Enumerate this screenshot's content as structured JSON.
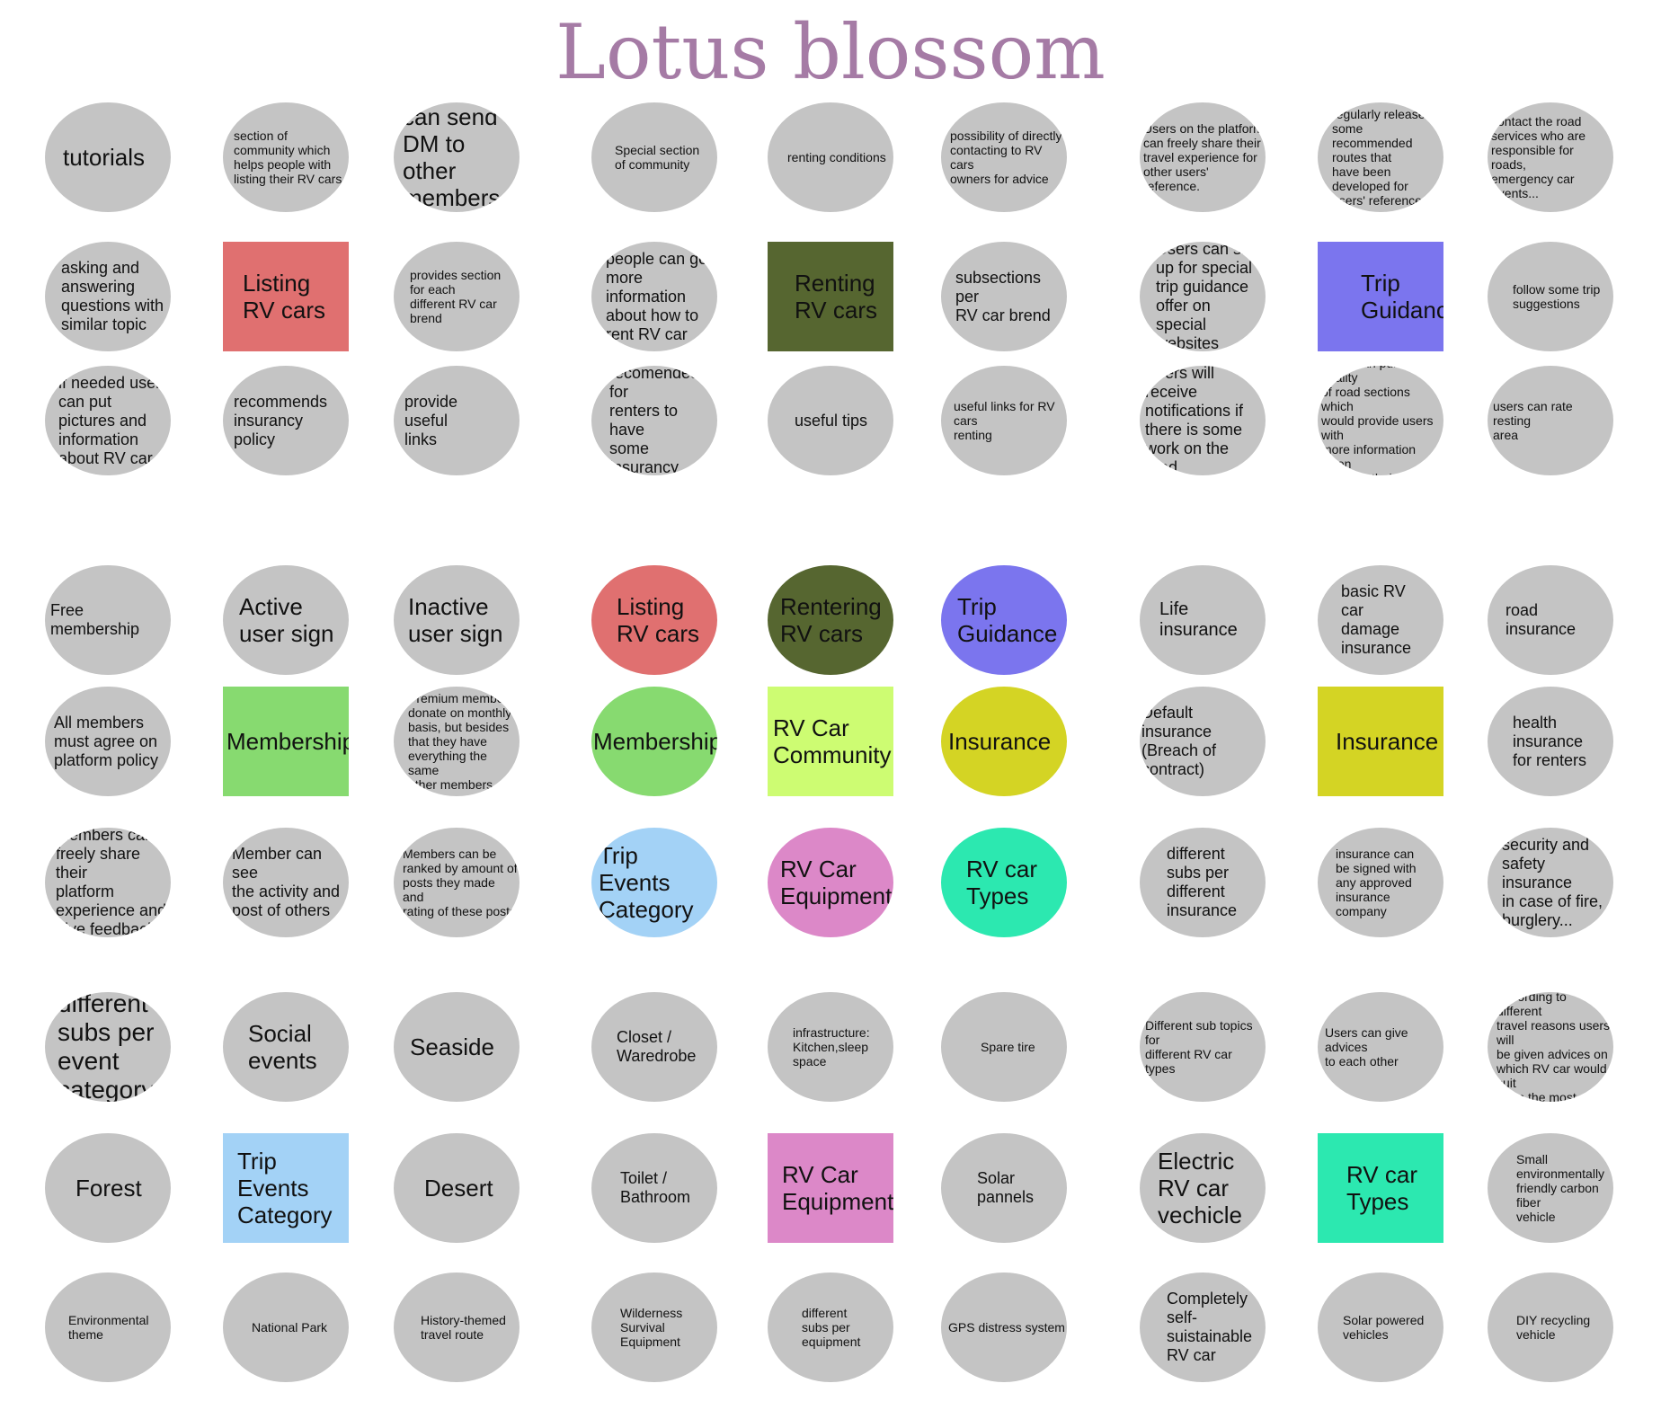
{
  "title": "Lotus blossom",
  "colors": {
    "grey": "#c4c4c4",
    "title": "#a57ba5",
    "listing": "#e07070",
    "renting": "#566630",
    "trip_guidance": "#7b75ee",
    "membership": "#87da70",
    "community": "#cdfc72",
    "insurance": "#d4d424",
    "trip_events": "#a3d2f6",
    "equipment": "#dc88c8",
    "types": "#2ce8b0"
  },
  "nodes": [
    {
      "text": "tutorials",
      "shape": "circle",
      "color": "grey"
    },
    {
      "text": "section of\ncommunity which\nhelps people with\nlisting their RV cars",
      "shape": "circle",
      "color": "grey"
    },
    {
      "text": "can send\nDM to other\nmembers",
      "shape": "circle",
      "color": "grey"
    },
    {
      "text": "asking and\nanswering\nquestions with\nsimilar topic",
      "shape": "circle",
      "color": "grey"
    },
    {
      "text": "Listing\nRV cars",
      "shape": "rect",
      "color": "listing"
    },
    {
      "text": "provides section\nfor each\ndifferent RV car\nbrend",
      "shape": "circle",
      "color": "grey"
    },
    {
      "text": "if needed user\ncan put\npictures and\ninformation\nabout RV car",
      "shape": "circle",
      "color": "grey"
    },
    {
      "text": "recommends\ninsurancy policy",
      "shape": "circle",
      "color": "grey"
    },
    {
      "text": "provide\nuseful\nlinks",
      "shape": "circle",
      "color": "grey"
    },
    {
      "text": "Special section\nof community",
      "shape": "circle",
      "color": "grey"
    },
    {
      "text": "renting conditions",
      "shape": "circle",
      "color": "grey"
    },
    {
      "text": "possibility of directly\ncontacting to RV cars\nowners for advice",
      "shape": "circle",
      "color": "grey"
    },
    {
      "text": "people can get\nmore\ninformation\nabout how to\nrent RV car",
      "shape": "circle",
      "color": "grey"
    },
    {
      "text": "Renting\nRV cars",
      "shape": "rect",
      "color": "renting"
    },
    {
      "text": "subsections per\nRV car brend",
      "shape": "circle",
      "color": "grey"
    },
    {
      "text": "it is usually\nrecomended for\nrenters to have\nsome insurancy\non forum",
      "shape": "circle",
      "color": "grey"
    },
    {
      "text": "useful tips",
      "shape": "circle",
      "color": "grey"
    },
    {
      "text": "useful links for RV cars\nrenting",
      "shape": "circle",
      "color": "grey"
    },
    {
      "text": "Users on the platform\ncan freely share their\ntravel experience for\nother users' reference.",
      "shape": "circle",
      "color": "grey"
    },
    {
      "text": "regularly release some\nrecommended routes that\nhave been developed for\nusers' reference.",
      "shape": "circle",
      "color": "grey"
    },
    {
      "text": "contact the road\nservices who are\nresponsible for roads,\nemergency car events...",
      "shape": "circle",
      "color": "grey"
    },
    {
      "text": "Users can sign\nup for special\ntrip guidance\noffer on special\nwebsites",
      "shape": "circle",
      "color": "grey"
    },
    {
      "text": "Trip\nGuidance",
      "shape": "rect",
      "color": "trip_guidance"
    },
    {
      "text": "follow some trip\nsuggestions",
      "shape": "circle",
      "color": "grey"
    },
    {
      "text": "Users will receive\nnotifications if\nthere is some\nwork on the road",
      "shape": "circle",
      "color": "grey"
    },
    {
      "text": "users can publish quality\nof road sections which\nwould provide users with\nmore information when\ndeciding their route",
      "shape": "circle",
      "color": "grey"
    },
    {
      "text": "users can rate resting\narea",
      "shape": "circle",
      "color": "grey"
    },
    {
      "text": "Free membership",
      "shape": "circle",
      "color": "grey"
    },
    {
      "text": "Active\nuser sign",
      "shape": "circle",
      "color": "grey"
    },
    {
      "text": "Inactive\nuser sign",
      "shape": "circle",
      "color": "grey"
    },
    {
      "text": "All members\nmust agree on\nplatform policy",
      "shape": "circle",
      "color": "grey"
    },
    {
      "text": "Membership",
      "shape": "rect",
      "color": "membership"
    },
    {
      "text": "Premium members\ndonate on monthly\nbasis, but besides\nthat they have\neverything the same\nother members",
      "shape": "circle",
      "color": "grey"
    },
    {
      "text": "members can\nfreely share their\nplatform\nexperience and\ngive feedback",
      "shape": "circle",
      "color": "grey"
    },
    {
      "text": "Member can see\nthe activity and\npost of others",
      "shape": "circle",
      "color": "grey"
    },
    {
      "text": "Members can be\nranked by amount of\nposts they made and\nrating of these posts",
      "shape": "circle",
      "color": "grey"
    },
    {
      "text": "Listing\nRV cars",
      "shape": "circle",
      "color": "listing"
    },
    {
      "text": "Rentering\nRV cars",
      "shape": "circle",
      "color": "renting"
    },
    {
      "text": "Trip\nGuidance",
      "shape": "circle",
      "color": "trip_guidance"
    },
    {
      "text": "Membership",
      "shape": "circle",
      "color": "membership"
    },
    {
      "text": "RV Car\nCommunity",
      "shape": "rect",
      "color": "community"
    },
    {
      "text": "Insurance",
      "shape": "circle",
      "color": "insurance"
    },
    {
      "text": "Trip Events\nCategory",
      "shape": "circle",
      "color": "trip_events"
    },
    {
      "text": "RV Car\nEquipment",
      "shape": "circle",
      "color": "equipment"
    },
    {
      "text": "RV car\nTypes",
      "shape": "circle",
      "color": "types"
    },
    {
      "text": "Life\ninsurance",
      "shape": "circle",
      "color": "grey"
    },
    {
      "text": "basic RV\ncar\ndamage\ninsurance",
      "shape": "circle",
      "color": "grey"
    },
    {
      "text": "road\ninsurance",
      "shape": "circle",
      "color": "grey"
    },
    {
      "text": "Default insurance\n(Breach of contract)",
      "shape": "circle",
      "color": "grey"
    },
    {
      "text": "Insurance",
      "shape": "rect",
      "color": "insurance"
    },
    {
      "text": "health\ninsurance\nfor renters",
      "shape": "circle",
      "color": "grey"
    },
    {
      "text": "different\nsubs per\ndifferent\ninsurance",
      "shape": "circle",
      "color": "grey"
    },
    {
      "text": "insurance can\nbe signed with\nany approved\ninsurance\ncompany",
      "shape": "circle",
      "color": "grey"
    },
    {
      "text": "security and\nsafety insurance\nin case of fire,\nburglery...",
      "shape": "circle",
      "color": "grey"
    },
    {
      "text": "different\nsubs per\nevent\ncategory",
      "shape": "circle",
      "color": "grey"
    },
    {
      "text": "Social\nevents",
      "shape": "circle",
      "color": "grey"
    },
    {
      "text": "Seaside",
      "shape": "circle",
      "color": "grey"
    },
    {
      "text": "Forest",
      "shape": "circle",
      "color": "grey"
    },
    {
      "text": "Trip Events\nCategory",
      "shape": "rect",
      "color": "trip_events"
    },
    {
      "text": "Desert",
      "shape": "circle",
      "color": "grey"
    },
    {
      "text": "Environmental\ntheme",
      "shape": "circle",
      "color": "grey"
    },
    {
      "text": "National Park",
      "shape": "circle",
      "color": "grey"
    },
    {
      "text": "History-themed\ntravel route",
      "shape": "circle",
      "color": "grey"
    },
    {
      "text": "Closet /\nWaredrobe",
      "shape": "circle",
      "color": "grey"
    },
    {
      "text": "infrastructure:\nKitchen,sleep\nspace",
      "shape": "circle",
      "color": "grey"
    },
    {
      "text": "Spare tire",
      "shape": "circle",
      "color": "grey"
    },
    {
      "text": "Toilet /\nBathroom",
      "shape": "circle",
      "color": "grey"
    },
    {
      "text": "RV Car\nEquipment",
      "shape": "rect",
      "color": "equipment"
    },
    {
      "text": "Solar\npannels",
      "shape": "circle",
      "color": "grey"
    },
    {
      "text": "Wilderness\nSurvival\nEquipment",
      "shape": "circle",
      "color": "grey"
    },
    {
      "text": "different\nsubs per\nequipment",
      "shape": "circle",
      "color": "grey"
    },
    {
      "text": "GPS distress system",
      "shape": "circle",
      "color": "grey"
    },
    {
      "text": "Different sub topics for\ndifferent RV car types",
      "shape": "circle",
      "color": "grey"
    },
    {
      "text": "Users can give advices\nto each other",
      "shape": "circle",
      "color": "grey"
    },
    {
      "text": "According to different\ntravel reasons users will\nbe given advices on\nwhich RV car would suit\nthem the most",
      "shape": "circle",
      "color": "grey"
    },
    {
      "text": "Electric\nRV car\nvechicle",
      "shape": "circle",
      "color": "grey"
    },
    {
      "text": "RV car\nTypes",
      "shape": "rect",
      "color": "types"
    },
    {
      "text": "Small\nenvironmentally\nfriendly carbon fiber\nvehicle",
      "shape": "circle",
      "color": "grey"
    },
    {
      "text": "Completely\nself-\nsuistainable\nRV car",
      "shape": "circle",
      "color": "grey"
    },
    {
      "text": "Solar powered\nvehicles",
      "shape": "circle",
      "color": "grey"
    },
    {
      "text": "DIY recycling\nvehicle",
      "shape": "circle",
      "color": "grey"
    }
  ]
}
